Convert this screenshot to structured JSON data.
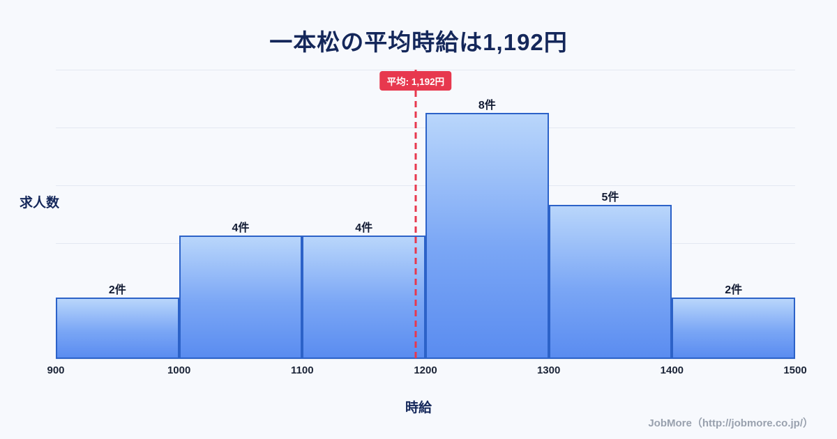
{
  "title": "一本松の平均時給は1,192円",
  "chart_data": {
    "type": "bar",
    "subtype": "histogram",
    "title": "一本松の平均時給は1,192円",
    "xlabel": "時給",
    "ylabel": "求人数",
    "x_ticks": [
      900,
      1000,
      1100,
      1200,
      1300,
      1400,
      1500
    ],
    "bin_edges": [
      900,
      1000,
      1100,
      1200,
      1300,
      1400,
      1500
    ],
    "values": [
      2,
      4,
      4,
      8,
      5,
      2
    ],
    "bar_labels": [
      "2件",
      "4件",
      "4件",
      "8件",
      "5件",
      "2件"
    ],
    "xlim": [
      900,
      1500
    ],
    "ylim": [
      0,
      9.4
    ],
    "gridlines": 6,
    "grid": "horizontal",
    "legend": "none",
    "average": {
      "value": 1192,
      "label": "平均: 1,192円"
    },
    "colors": {
      "background": "#f7f9fd",
      "bar_gradient_top": "#b9d6fb",
      "bar_gradient_bottom": "#5a8cf0",
      "bar_border": "#2c62c8",
      "average_accent": "#e7384e",
      "title_text": "#14275a",
      "gridline": "#e3e8f2"
    }
  },
  "footer": {
    "credit": "JobMore（http://jobmore.co.jp/）"
  }
}
